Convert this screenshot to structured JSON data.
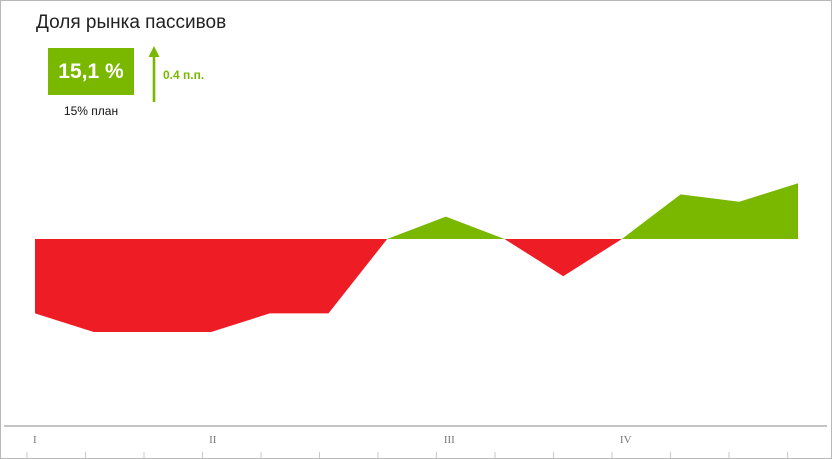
{
  "header": {
    "title": "Доля рынка пассивов"
  },
  "kpi": {
    "value_label": "15,1 %",
    "plan_label": "15% план",
    "delta_label": "0.4 п.п.",
    "direction": "up"
  },
  "colors": {
    "accent": "#7ab800",
    "negative": "#ee1c25",
    "axis": "#888888",
    "tick_label": "#777777"
  },
  "chart_data": {
    "type": "area",
    "title": "Доля рынка пассивов",
    "baseline": 15.0,
    "x": [
      1,
      2,
      3,
      4,
      5,
      6,
      7,
      8,
      9,
      10,
      11,
      12,
      13,
      14
    ],
    "values": [
      14.8,
      14.75,
      14.75,
      14.75,
      14.8,
      14.8,
      15.0,
      15.06,
      15.0,
      14.9,
      15.0,
      15.12,
      15.1,
      15.15
    ],
    "x_tick_labels": [
      {
        "x": 1,
        "label": "I"
      },
      {
        "x": 4,
        "label": "II"
      },
      {
        "x": 8,
        "label": "III"
      },
      {
        "x": 11,
        "label": "IV"
      }
    ],
    "positive_color": "#7ab800",
    "negative_color": "#ee1c25",
    "grid": false,
    "legend": "none"
  }
}
